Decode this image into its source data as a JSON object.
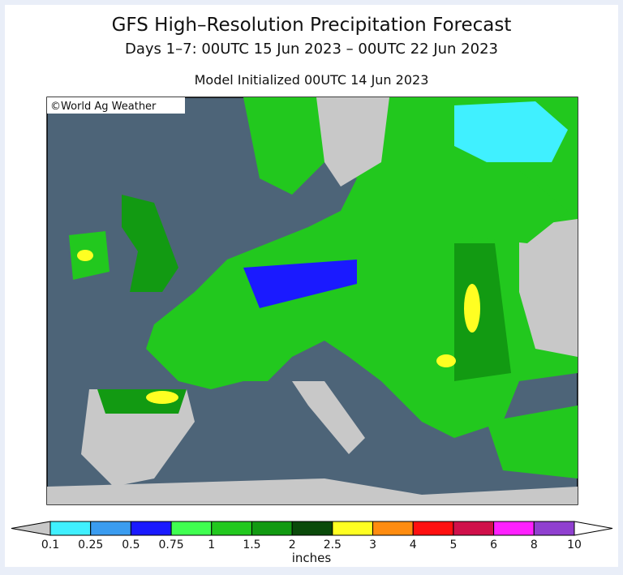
{
  "header": {
    "title": "GFS High–Resolution Precipitation Forecast",
    "subtitle": "Days 1–7: 00UTC 15 Jun 2023 – 00UTC 22 Jun 2023",
    "init": "Model Initialized 00UTC 14 Jun 2023"
  },
  "map": {
    "credit": "©World Ag Weather"
  },
  "legend": {
    "unit": "inches",
    "ticks": [
      "0.1",
      "0.25",
      "0.5",
      "0.75",
      "1",
      "1.5",
      "2",
      "2.5",
      "3",
      "4",
      "5",
      "6",
      "8",
      "10"
    ],
    "below_color": "#c8c8c8",
    "above_color": "#ffffff",
    "colors": [
      "#40f0ff",
      "#3a9cf0",
      "#1a1aff",
      "#40ff50",
      "#22c81e",
      "#129a12",
      "#0a4a0a",
      "#ffff22",
      "#ff8c10",
      "#ff1010",
      "#d0104a",
      "#ff20ff",
      "#9040d0"
    ]
  }
}
